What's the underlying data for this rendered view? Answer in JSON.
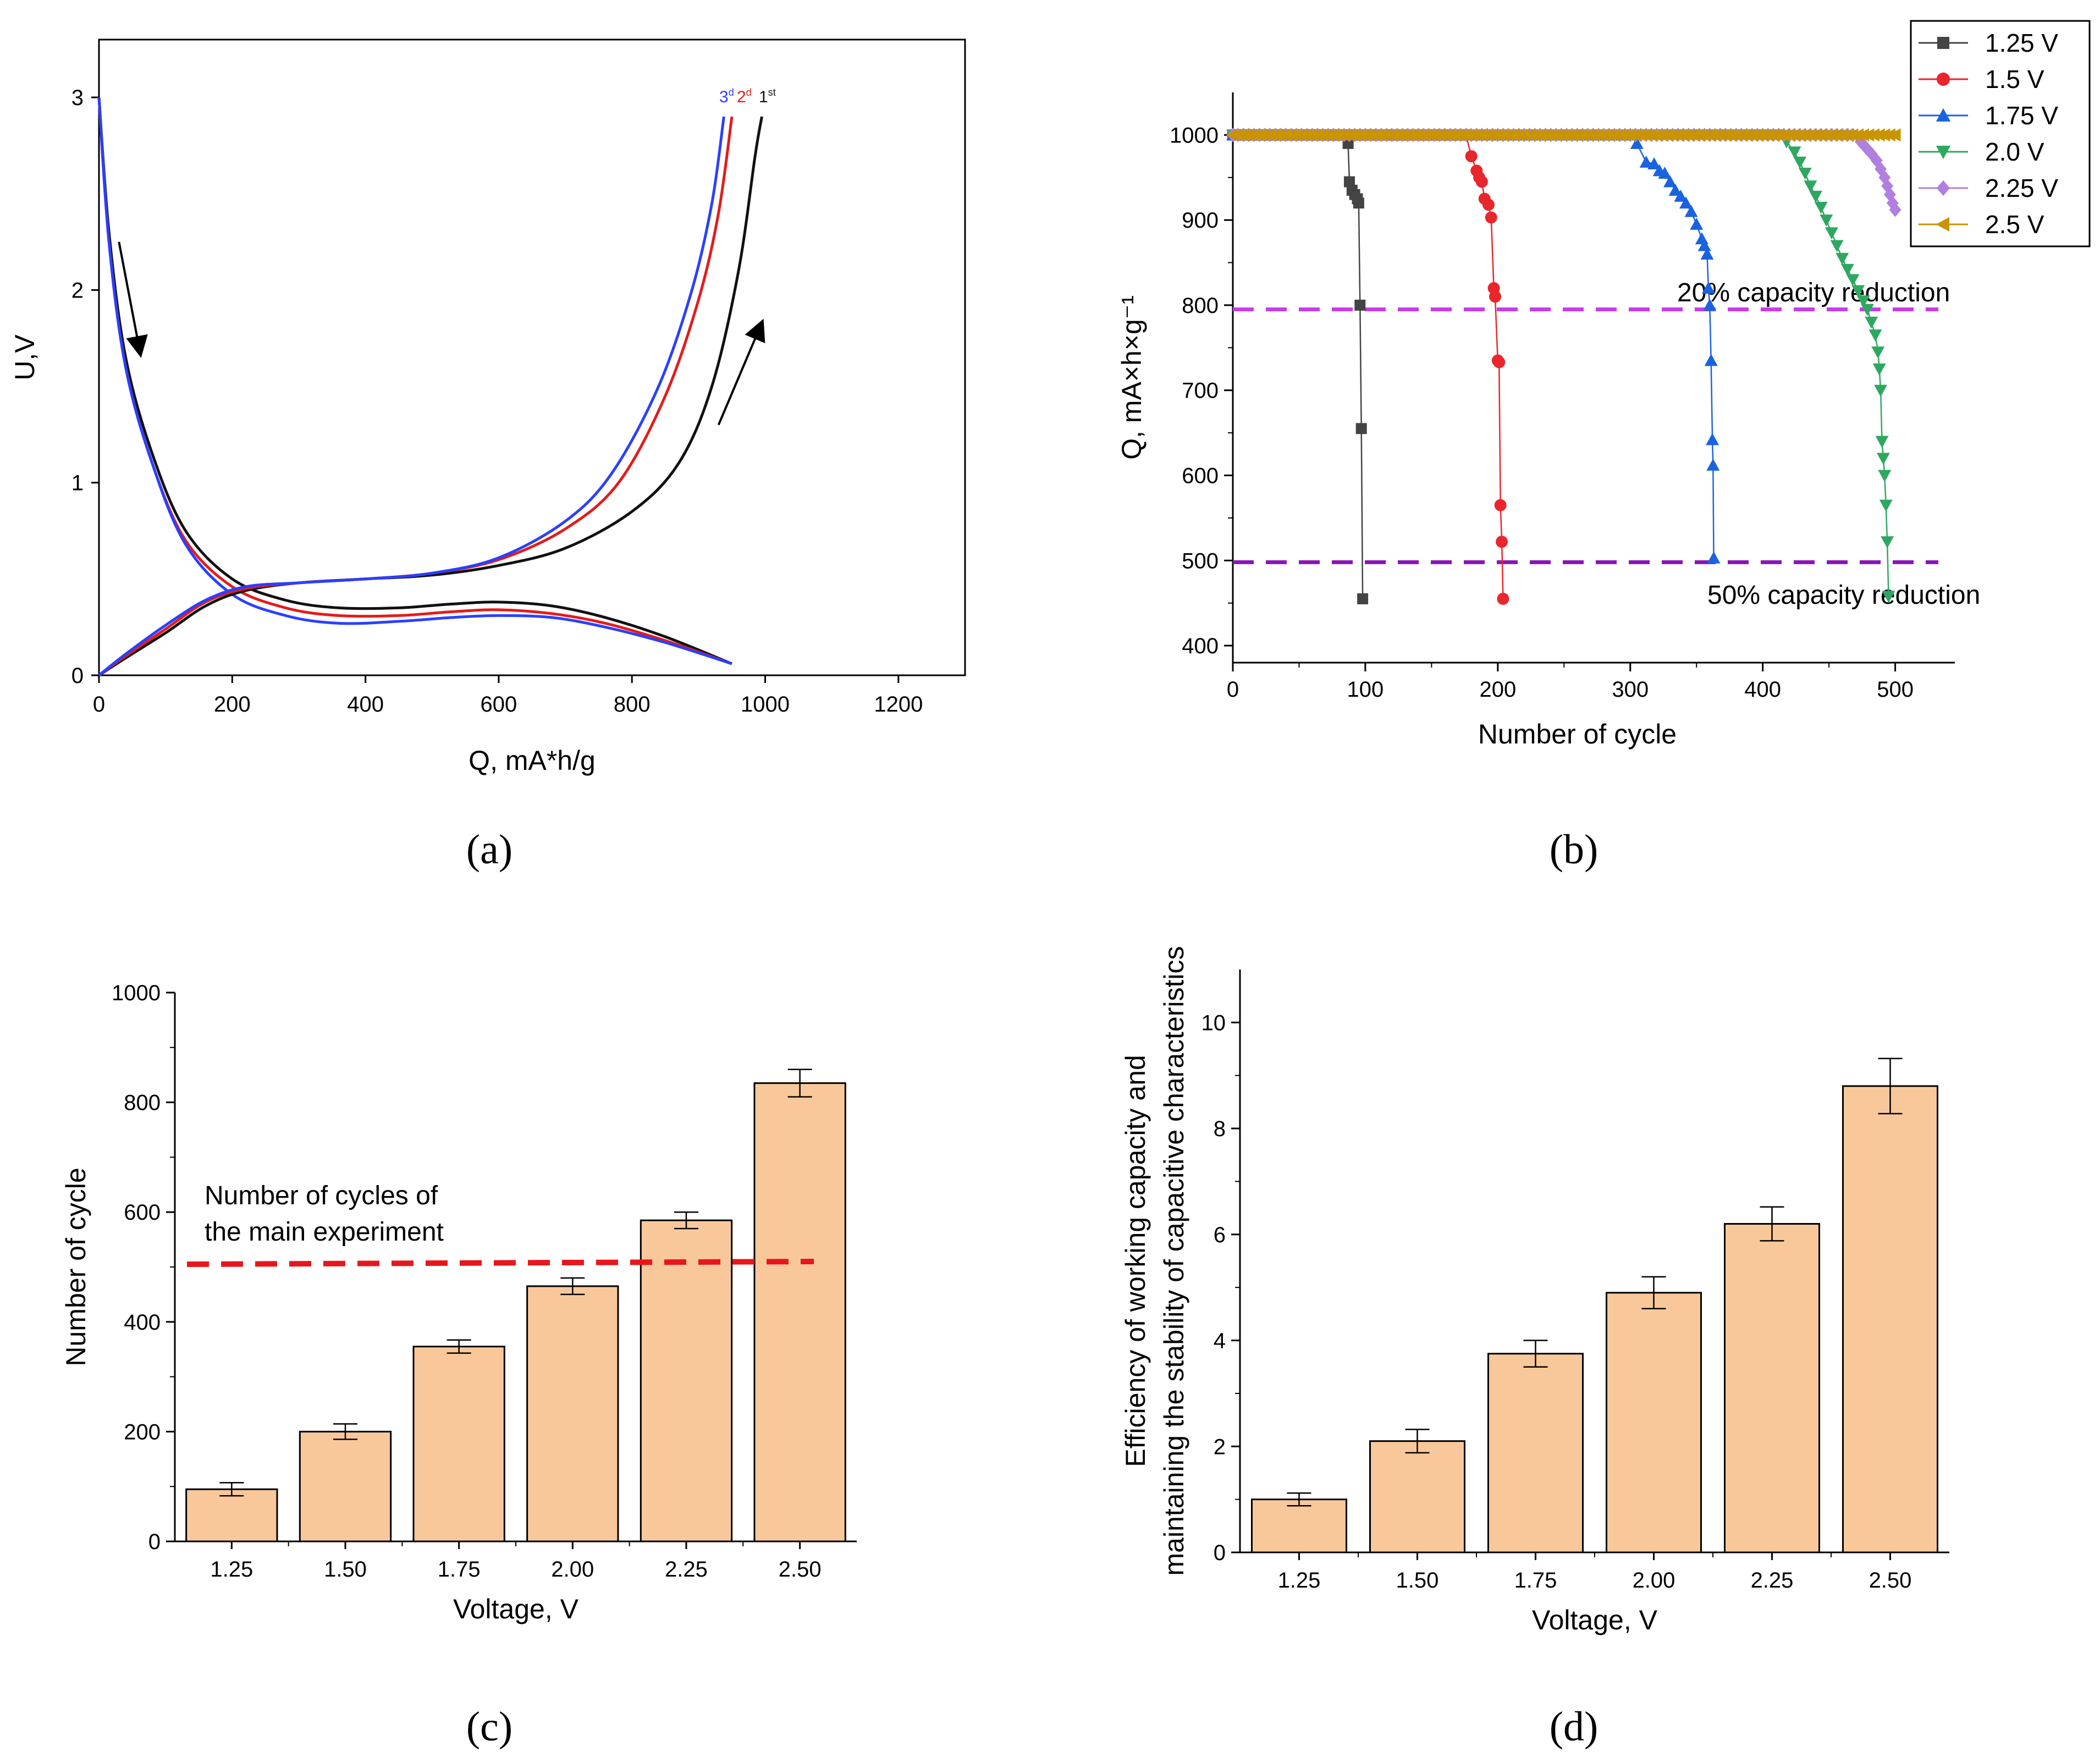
{
  "chart_data": [
    {
      "panel": "(a)",
      "type": "line",
      "xlabel": "Q, mA*h/g",
      "ylabel": "U,V",
      "xlim": [
        0,
        1300
      ],
      "ylim": [
        0,
        3.3
      ],
      "xticks": [
        0,
        200,
        400,
        600,
        800,
        1000,
        1200
      ],
      "yticks": [
        0,
        1,
        2,
        3
      ],
      "curve_labels": [
        {
          "text": "3",
          "sup": "d",
          "color": "#2b3fff"
        },
        {
          "text": "2",
          "sup": "d",
          "color": "#e41b1b"
        },
        {
          "text": "1",
          "sup": "st",
          "color": "#111111"
        }
      ],
      "series": [
        {
          "color": "#111111",
          "kind": "discharge",
          "points": [
            [
              0,
              3.0
            ],
            [
              15,
              2.3
            ],
            [
              40,
              1.65
            ],
            [
              80,
              1.15
            ],
            [
              130,
              0.75
            ],
            [
              200,
              0.5
            ],
            [
              280,
              0.39
            ],
            [
              360,
              0.35
            ],
            [
              450,
              0.35
            ],
            [
              530,
              0.37
            ],
            [
              600,
              0.38
            ],
            [
              680,
              0.36
            ],
            [
              760,
              0.3
            ],
            [
              850,
              0.2
            ],
            [
              950,
              0.06
            ]
          ]
        },
        {
          "color": "#e41b1b",
          "kind": "discharge",
          "points": [
            [
              0,
              3.0
            ],
            [
              15,
              2.25
            ],
            [
              40,
              1.6
            ],
            [
              80,
              1.1
            ],
            [
              130,
              0.7
            ],
            [
              200,
              0.46
            ],
            [
              280,
              0.35
            ],
            [
              360,
              0.31
            ],
            [
              450,
              0.31
            ],
            [
              530,
              0.33
            ],
            [
              600,
              0.34
            ],
            [
              680,
              0.32
            ],
            [
              760,
              0.27
            ],
            [
              850,
              0.18
            ],
            [
              950,
              0.06
            ]
          ]
        },
        {
          "color": "#2b3fff",
          "kind": "discharge",
          "points": [
            [
              0,
              3.0
            ],
            [
              15,
              2.25
            ],
            [
              40,
              1.6
            ],
            [
              80,
              1.1
            ],
            [
              130,
              0.68
            ],
            [
              200,
              0.42
            ],
            [
              280,
              0.31
            ],
            [
              360,
              0.27
            ],
            [
              450,
              0.28
            ],
            [
              530,
              0.3
            ],
            [
              600,
              0.31
            ],
            [
              680,
              0.3
            ],
            [
              760,
              0.25
            ],
            [
              850,
              0.17
            ],
            [
              950,
              0.06
            ]
          ]
        },
        {
          "color": "#111111",
          "kind": "charge",
          "points": [
            [
              0,
              0
            ],
            [
              40,
              0.09
            ],
            [
              100,
              0.22
            ],
            [
              160,
              0.36
            ],
            [
              220,
              0.44
            ],
            [
              300,
              0.48
            ],
            [
              400,
              0.5
            ],
            [
              500,
              0.52
            ],
            [
              600,
              0.57
            ],
            [
              700,
              0.66
            ],
            [
              800,
              0.85
            ],
            [
              870,
              1.1
            ],
            [
              920,
              1.5
            ],
            [
              960,
              2.1
            ],
            [
              985,
              2.7
            ],
            [
              995,
              2.9
            ]
          ]
        },
        {
          "color": "#e41b1b",
          "kind": "charge",
          "points": [
            [
              0,
              0
            ],
            [
              40,
              0.1
            ],
            [
              100,
              0.24
            ],
            [
              160,
              0.38
            ],
            [
              220,
              0.45
            ],
            [
              300,
              0.48
            ],
            [
              400,
              0.5
            ],
            [
              500,
              0.53
            ],
            [
              600,
              0.6
            ],
            [
              700,
              0.76
            ],
            [
              780,
              1.0
            ],
            [
              850,
              1.45
            ],
            [
              900,
              1.95
            ],
            [
              930,
              2.4
            ],
            [
              950,
              2.9
            ]
          ]
        },
        {
          "color": "#2b3fff",
          "kind": "charge",
          "points": [
            [
              0,
              0
            ],
            [
              40,
              0.11
            ],
            [
              100,
              0.26
            ],
            [
              160,
              0.39
            ],
            [
              220,
              0.46
            ],
            [
              300,
              0.48
            ],
            [
              400,
              0.5
            ],
            [
              500,
              0.53
            ],
            [
              600,
              0.61
            ],
            [
              700,
              0.8
            ],
            [
              770,
              1.05
            ],
            [
              840,
              1.5
            ],
            [
              890,
              2.0
            ],
            [
              920,
              2.45
            ],
            [
              938,
              2.9
            ]
          ]
        }
      ],
      "arrows": [
        {
          "from": [
            30,
            2.25
          ],
          "to": [
            62,
            1.67
          ]
        },
        {
          "from": [
            930,
            1.3
          ],
          "to": [
            995,
            1.83
          ]
        }
      ]
    },
    {
      "panel": "(b)",
      "type": "scatter",
      "xlabel": "Number of cycle",
      "ylabel": "Q, mA×h×g⁻¹",
      "xlim": [
        0,
        545
      ],
      "ylim": [
        380,
        1050
      ],
      "xticks": [
        0,
        100,
        200,
        300,
        400,
        500
      ],
      "yticks": [
        400,
        500,
        600,
        700,
        800,
        900,
        1000
      ],
      "reference_lines": [
        {
          "y": 795,
          "label": "20% capacity reduction",
          "color": "#c63ce8"
        },
        {
          "y": 498,
          "label": "50% capacity reduction",
          "color": "#8a14b8"
        }
      ],
      "legend_position": "top-right",
      "series": [
        {
          "name": "1.25 V",
          "color": "#444444",
          "marker": "square",
          "plateau_end": 85,
          "points": [
            [
              87,
              990
            ],
            [
              88,
              945
            ],
            [
              90,
              935
            ],
            [
              92,
              930
            ],
            [
              94,
              925
            ],
            [
              95,
              920
            ],
            [
              96,
              800
            ],
            [
              97,
              655
            ],
            [
              98,
              455
            ]
          ]
        },
        {
          "name": "1.5 V",
          "color": "#e8262c",
          "marker": "circle",
          "plateau_end": 178,
          "points": [
            [
              180,
              975
            ],
            [
              184,
              958
            ],
            [
              186,
              950
            ],
            [
              188,
              945
            ],
            [
              190,
              925
            ],
            [
              193,
              918
            ],
            [
              195,
              903
            ],
            [
              197,
              820
            ],
            [
              198,
              810
            ],
            [
              200,
              735
            ],
            [
              201,
              733
            ],
            [
              202,
              565
            ],
            [
              203,
              522
            ],
            [
              204,
              455
            ]
          ]
        },
        {
          "name": "1.75 V",
          "color": "#1a63e0",
          "marker": "triangle-up",
          "plateau_end": 300,
          "points": [
            [
              305,
              990
            ],
            [
              312,
              968
            ],
            [
              318,
              966
            ],
            [
              322,
              958
            ],
            [
              326,
              955
            ],
            [
              330,
              945
            ],
            [
              334,
              935
            ],
            [
              338,
              928
            ],
            [
              342,
              920
            ],
            [
              346,
              910
            ],
            [
              350,
              895
            ],
            [
              354,
              878
            ],
            [
              356,
              870
            ],
            [
              358,
              860
            ],
            [
              359,
              820
            ],
            [
              360,
              800
            ],
            [
              361,
              735
            ],
            [
              362,
              642
            ],
            [
              362.5,
              612
            ],
            [
              363,
              503
            ]
          ]
        },
        {
          "name": "2.0 V",
          "color": "#2ea860",
          "marker": "triangle-down",
          "plateau_end": 415,
          "points": [
            [
              418,
              992
            ],
            [
              424,
              980
            ],
            [
              428,
              968
            ],
            [
              432,
              955
            ],
            [
              436,
              940
            ],
            [
              440,
              928
            ],
            [
              444,
              915
            ],
            [
              448,
              900
            ],
            [
              452,
              885
            ],
            [
              456,
              870
            ],
            [
              460,
              855
            ],
            [
              464,
              842
            ],
            [
              468,
              830
            ],
            [
              472,
              817
            ],
            [
              476,
              805
            ],
            [
              479,
              795
            ],
            [
              482,
              780
            ],
            [
              485,
              765
            ],
            [
              487,
              745
            ],
            [
              488,
              725
            ],
            [
              489,
              700
            ],
            [
              490,
              640
            ],
            [
              491,
              620
            ],
            [
              492,
              600
            ],
            [
              493,
              565
            ],
            [
              494,
              522
            ],
            [
              495,
              458
            ]
          ]
        },
        {
          "name": "2.25 V",
          "color": "#b07fe0",
          "marker": "diamond",
          "plateau_end": 470,
          "points": [
            [
              474,
              992
            ],
            [
              478,
              985
            ],
            [
              482,
              978
            ],
            [
              486,
              970
            ],
            [
              489,
              960
            ],
            [
              492,
              950
            ],
            [
              494,
              940
            ],
            [
              496,
              930
            ],
            [
              498,
              920
            ],
            [
              500,
              912
            ]
          ]
        },
        {
          "name": "2.5 V",
          "color": "#c89400",
          "marker": "triangle-left",
          "plateau_end": 500,
          "points": []
        }
      ]
    },
    {
      "panel": "(c)",
      "type": "bar",
      "xlabel": "Voltage, V",
      "ylabel": "Number of cycle",
      "ylim": [
        0,
        1000
      ],
      "yticks": [
        0,
        200,
        400,
        600,
        800,
        1000
      ],
      "categories": [
        "1.25",
        "1.50",
        "1.75",
        "2.00",
        "2.25",
        "2.50"
      ],
      "values": [
        95,
        200,
        355,
        465,
        585,
        835
      ],
      "errors": [
        12,
        14,
        12,
        15,
        15,
        25
      ],
      "bar_color": "#f9c89a",
      "reference_line": {
        "y_start": 505,
        "y_end": 510,
        "color": "#e8161c",
        "label_lines": [
          "Number of cycles of",
          "the main experiment"
        ]
      }
    },
    {
      "panel": "(d)",
      "type": "bar",
      "xlabel": "Voltage, V",
      "ylabel_lines": [
        "Efficiency of working capacity and",
        "maintaining the stability of capacitive characteristics"
      ],
      "ylim": [
        0,
        11
      ],
      "yticks": [
        0,
        2,
        4,
        6,
        8,
        10
      ],
      "categories": [
        "1.25",
        "1.50",
        "1.75",
        "2.00",
        "2.25",
        "2.50"
      ],
      "values": [
        1.0,
        2.1,
        3.75,
        4.9,
        6.2,
        8.8
      ],
      "errors": [
        0.12,
        0.22,
        0.25,
        0.3,
        0.32,
        0.52
      ],
      "bar_color": "#f9c89a"
    }
  ]
}
